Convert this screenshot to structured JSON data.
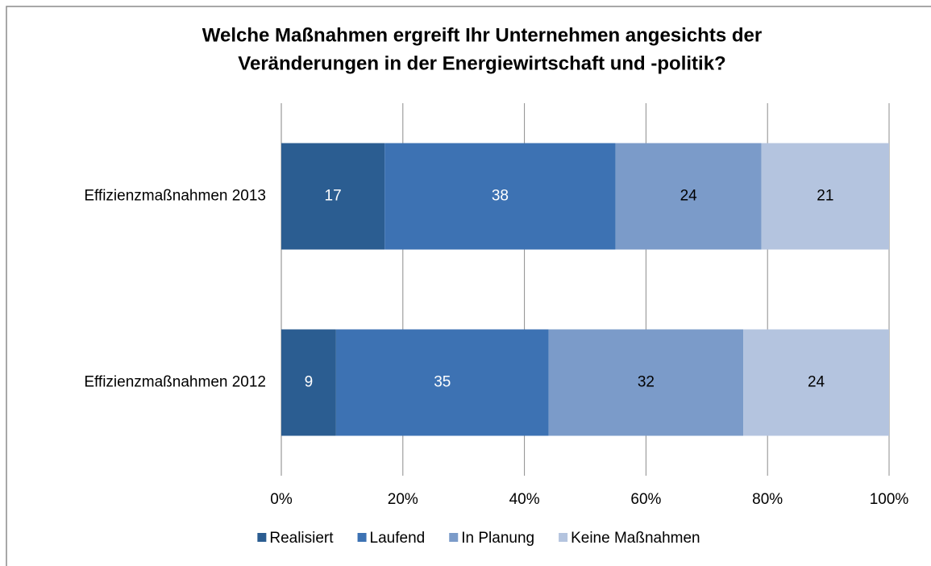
{
  "chart_data": {
    "type": "stacked_bar_horizontal",
    "title": [
      "Welche Maßnahmen ergreift Ihr Unternehmen angesichts der",
      "Veränderungen in der Energiewirtschaft und -politik?"
    ],
    "categories": [
      "Effizienzmaßnahmen 2013",
      "Effizienzmaßnahmen 2012"
    ],
    "series": [
      {
        "name": "Realisiert",
        "color": "#2b5d91",
        "label_color": "#ffffff",
        "values": [
          17,
          9
        ]
      },
      {
        "name": "Laufend",
        "color": "#3d72b3",
        "label_color": "#ffffff",
        "values": [
          38,
          35
        ]
      },
      {
        "name": "In Planung",
        "color": "#7b9bc9",
        "label_color": "#000000",
        "values": [
          24,
          32
        ]
      },
      {
        "name": "Keine Maßnahmen",
        "color": "#b4c4df",
        "label_color": "#000000",
        "values": [
          21,
          24
        ]
      }
    ],
    "xlim": [
      0,
      100
    ],
    "xticks": [
      {
        "value": 0,
        "label": "0%"
      },
      {
        "value": 20,
        "label": "20%"
      },
      {
        "value": 40,
        "label": "40%"
      },
      {
        "value": 60,
        "label": "60%"
      },
      {
        "value": 80,
        "label": "80%"
      },
      {
        "value": 100,
        "label": "100%"
      }
    ],
    "grid": true,
    "legend": "bottom"
  }
}
